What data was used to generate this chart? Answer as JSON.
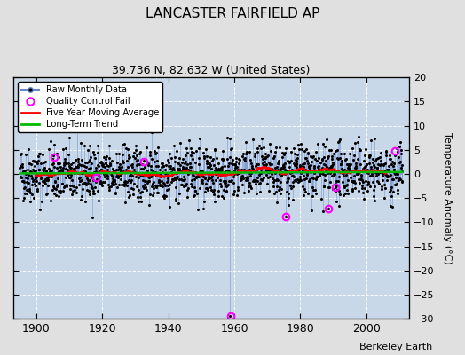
{
  "title": "LANCASTER FAIRFIELD AP",
  "subtitle": "39.736 N, 82.632 W (United States)",
  "ylabel": "Temperature Anomaly (°C)",
  "credit": "Berkeley Earth",
  "xlim": [
    1893,
    2013
  ],
  "ylim": [
    -30,
    20
  ],
  "yticks": [
    -30,
    -25,
    -20,
    -15,
    -10,
    -5,
    0,
    5,
    10,
    15,
    20
  ],
  "xticks": [
    1900,
    1920,
    1940,
    1960,
    1980,
    2000
  ],
  "plot_bg": "#c8d8e8",
  "fig_bg": "#e0e0e0",
  "raw_color": "#6688cc",
  "dot_color": "#000000",
  "ma_color": "#ff0000",
  "trend_color": "#00bb00",
  "qc_color": "#ff00ff",
  "seed": 42,
  "start_year": 1895,
  "end_year": 2010,
  "noise_std": 2.8,
  "qc_fail_points": [
    {
      "year": 1905.5,
      "val": 3.5
    },
    {
      "year": 1918.0,
      "val": -0.8
    },
    {
      "year": 1932.5,
      "val": 2.5
    },
    {
      "year": 1958.83,
      "val": -29.5
    },
    {
      "year": 1975.5,
      "val": -8.8
    },
    {
      "year": 1988.5,
      "val": -7.2
    },
    {
      "year": 1990.5,
      "val": -2.8
    },
    {
      "year": 2008.7,
      "val": 4.8
    }
  ]
}
